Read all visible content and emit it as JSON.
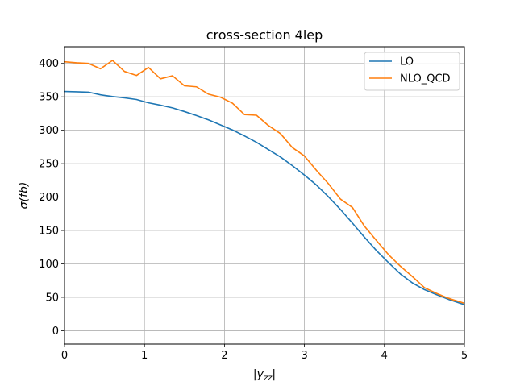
{
  "chart_data": {
    "type": "line",
    "title": "cross-section 4lep",
    "xlabel": "|y_zz|",
    "ylabel": "σ(fb)",
    "xlim": [
      0,
      5
    ],
    "ylim": [
      -20,
      425
    ],
    "xticks": [
      0,
      1,
      2,
      3,
      4,
      5
    ],
    "yticks": [
      0,
      50,
      100,
      150,
      200,
      250,
      300,
      350,
      400
    ],
    "grid": true,
    "legend_position": "top-right",
    "series": [
      {
        "name": "LO",
        "color": "#1f77b4",
        "x": [
          0,
          0.15,
          0.3,
          0.45,
          0.6,
          0.75,
          0.9,
          1.05,
          1.2,
          1.35,
          1.5,
          1.65,
          1.8,
          1.95,
          2.1,
          2.25,
          2.4,
          2.55,
          2.7,
          2.85,
          3.0,
          3.15,
          3.3,
          3.45,
          3.6,
          3.75,
          3.9,
          4.05,
          4.2,
          4.35,
          4.5,
          4.65,
          4.8,
          5.0
        ],
        "values": [
          358,
          357.5,
          357,
          353,
          350.5,
          348.5,
          346,
          341,
          337.5,
          333.5,
          328,
          322,
          315.5,
          308,
          300.5,
          291.5,
          282,
          271,
          260,
          247,
          233,
          218,
          200.5,
          181.5,
          161,
          140,
          120,
          102,
          85,
          71.5,
          61.5,
          54,
          47,
          39
        ]
      },
      {
        "name": "NLO_QCD",
        "color": "#ff7f0e",
        "x": [
          0,
          0.15,
          0.3,
          0.45,
          0.6,
          0.75,
          0.9,
          1.05,
          1.2,
          1.35,
          1.5,
          1.65,
          1.8,
          1.95,
          2.1,
          2.25,
          2.4,
          2.55,
          2.7,
          2.85,
          3.0,
          3.15,
          3.3,
          3.45,
          3.6,
          3.75,
          3.9,
          4.05,
          4.2,
          4.35,
          4.5,
          4.65,
          4.8,
          5.0
        ],
        "values": [
          402.5,
          401,
          400,
          392,
          404.5,
          388,
          382,
          394,
          377,
          381.5,
          366.5,
          365,
          354,
          349.5,
          340.5,
          323.5,
          322.5,
          307,
          295,
          274,
          261.5,
          240,
          220,
          197,
          184.5,
          156.5,
          135,
          114,
          96.5,
          81,
          64.5,
          56,
          48.5,
          41
        ]
      }
    ]
  }
}
